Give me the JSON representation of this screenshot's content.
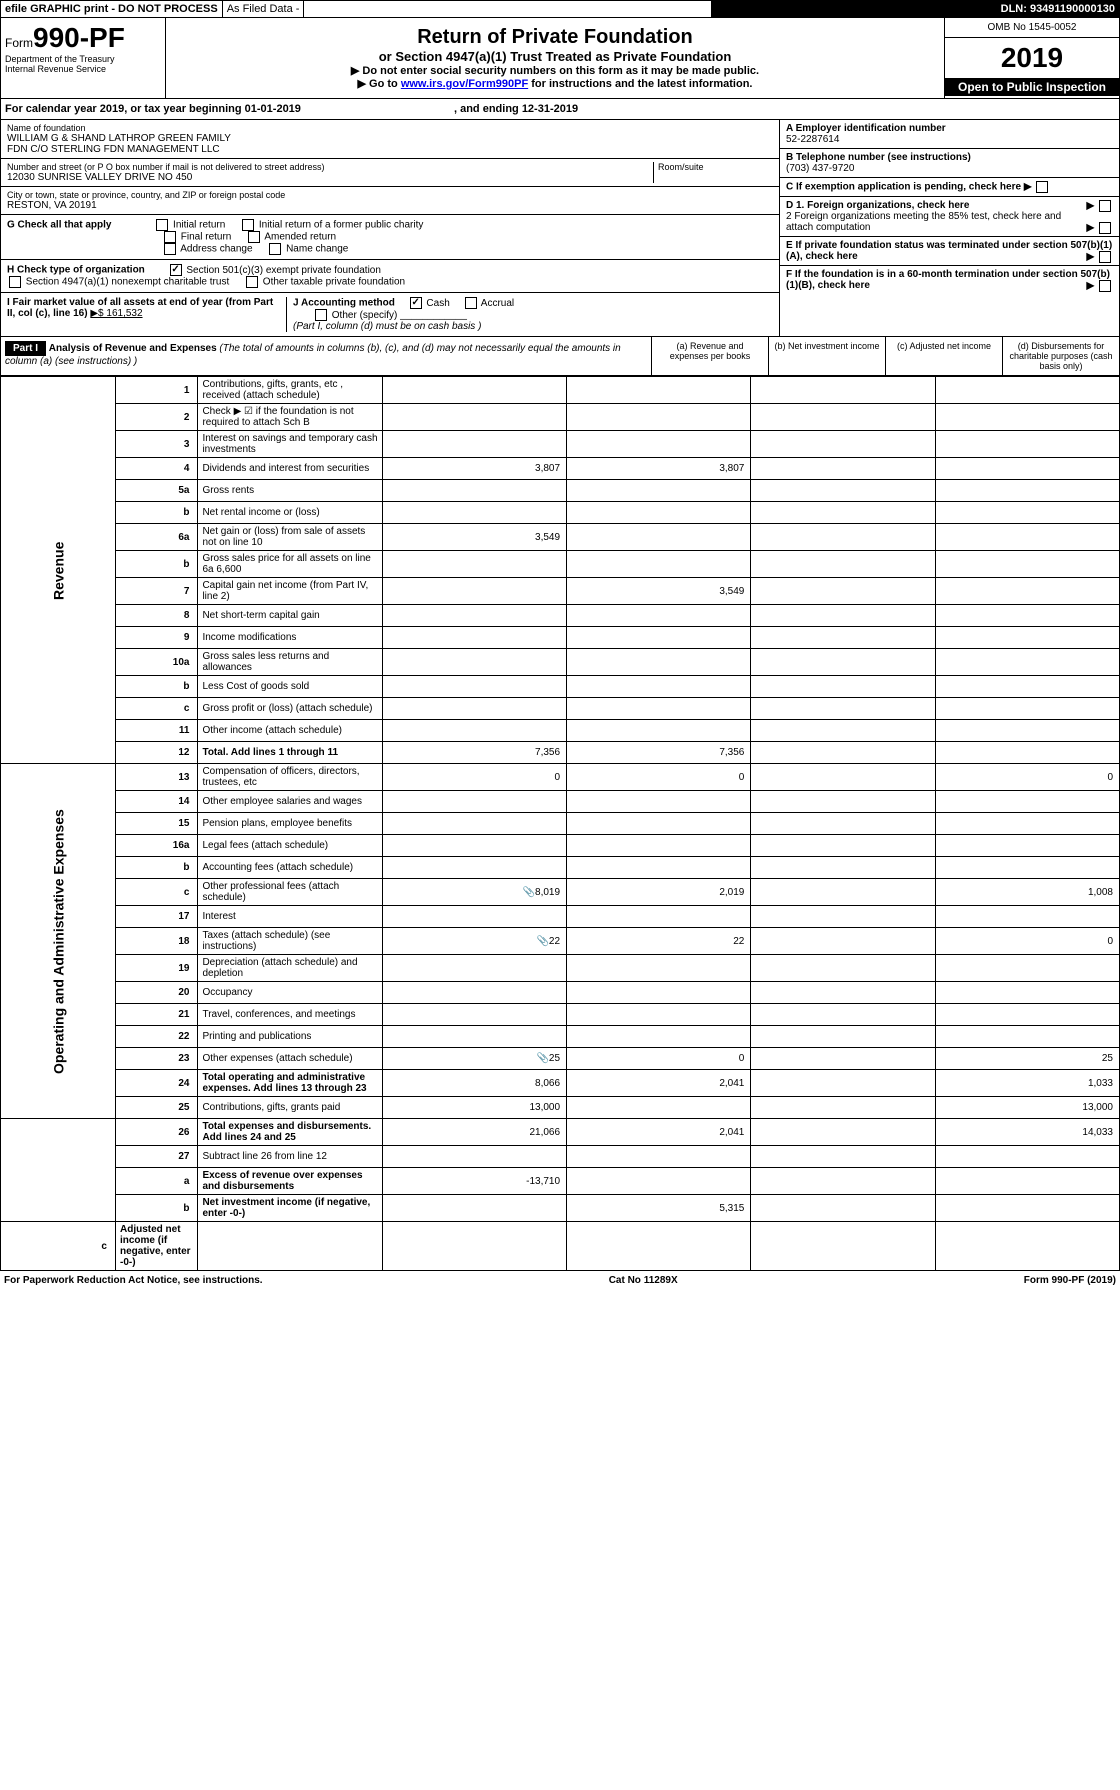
{
  "header": {
    "efile": "efile GRAPHIC print - DO NOT PROCESS",
    "asfiled": "As Filed Data -",
    "dln": "DLN: 93491190000130"
  },
  "form": {
    "prefix": "Form",
    "number": "990-PF",
    "dept1": "Department of the Treasury",
    "dept2": "Internal Revenue Service"
  },
  "title": {
    "main": "Return of Private Foundation",
    "sub": "or Section 4947(a)(1) Trust Treated as Private Foundation",
    "instr1": "▶ Do not enter social security numbers on this form as it may be made public.",
    "instr2_pre": "▶ Go to ",
    "instr2_link": "www.irs.gov/Form990PF",
    "instr2_post": " for instructions and the latest information."
  },
  "yearbox": {
    "omb": "OMB No 1545-0052",
    "year": "2019",
    "inspect": "Open to Public Inspection"
  },
  "calyear": {
    "text": "For calendar year 2019, or tax year beginning 01-01-2019",
    "ending": ", and ending 12-31-2019"
  },
  "foundation": {
    "name_label": "Name of foundation",
    "name1": "WILLIAM G & SHAND LATHROP GREEN FAMILY",
    "name2": "FDN C/O STERLING FDN MANAGEMENT LLC",
    "addr_label": "Number and street (or P O  box number if mail is not delivered to street address)",
    "room_label": "Room/suite",
    "addr": "12030 SUNRISE VALLEY DRIVE NO 450",
    "city_label": "City or town, state or province, country, and ZIP or foreign postal code",
    "city": "RESTON, VA  20191"
  },
  "right": {
    "a_label": "A Employer identification number",
    "a_val": "52-2287614",
    "b_label": "B Telephone number (see instructions)",
    "b_val": "(703) 437-9720",
    "c_label": "C If exemption application is pending, check here",
    "d1": "D 1. Foreign organizations, check here",
    "d2": "2 Foreign organizations meeting the 85% test, check here and attach computation",
    "e": "E  If private foundation status was terminated under section 507(b)(1)(A), check here",
    "f": "F  If the foundation is in a 60-month termination under section 507(b)(1)(B), check here"
  },
  "checkG": {
    "label": "G Check all that apply",
    "opts": [
      "Initial return",
      "Initial return of a former public charity",
      "Final return",
      "Amended return",
      "Address change",
      "Name change"
    ]
  },
  "checkH": {
    "label": "H Check type of organization",
    "opt1": "Section 501(c)(3) exempt private foundation",
    "opt2": "Section 4947(a)(1) nonexempt charitable trust",
    "opt3": "Other taxable private foundation"
  },
  "checkI": {
    "label": "I Fair market value of all assets at end of year (from Part II, col  (c), line 16)",
    "val": "▶$  161,532"
  },
  "checkJ": {
    "label": "J Accounting method",
    "cash": "Cash",
    "accrual": "Accrual",
    "other": "Other (specify)",
    "note": "(Part I, column (d) must be on cash basis )"
  },
  "part1": {
    "label": "Part I",
    "title": "Analysis of Revenue and Expenses",
    "note": "(The total of amounts in columns (b), (c), and (d) may not necessarily equal the amounts in column (a) (see instructions) )",
    "col_a": "(a) Revenue and expenses per books",
    "col_b": "(b) Net investment income",
    "col_c": "(c) Adjusted net income",
    "col_d": "(d) Disbursements for charitable purposes (cash basis only)"
  },
  "vert": {
    "revenue": "Revenue",
    "expenses": "Operating and Administrative Expenses"
  },
  "rows": [
    {
      "n": "1",
      "d": "Contributions, gifts, grants, etc , received (attach schedule)",
      "a": "",
      "b": "",
      "c": "",
      "dd": ""
    },
    {
      "n": "2",
      "d": "Check ▶ ☑ if the foundation is not required to attach Sch B",
      "a": "",
      "b": "",
      "c": "",
      "dd": ""
    },
    {
      "n": "3",
      "d": "Interest on savings and temporary cash investments",
      "a": "",
      "b": "",
      "c": "",
      "dd": ""
    },
    {
      "n": "4",
      "d": "Dividends and interest from securities",
      "a": "3,807",
      "b": "3,807",
      "c": "",
      "dd": ""
    },
    {
      "n": "5a",
      "d": "Gross rents",
      "a": "",
      "b": "",
      "c": "",
      "dd": ""
    },
    {
      "n": "b",
      "d": "Net rental income or (loss)",
      "a": "",
      "b": "",
      "c": "",
      "dd": ""
    },
    {
      "n": "6a",
      "d": "Net gain or (loss) from sale of assets not on line 10",
      "a": "3,549",
      "b": "",
      "c": "",
      "dd": ""
    },
    {
      "n": "b",
      "d": "Gross sales price for all assets on line 6a          6,600",
      "a": "",
      "b": "",
      "c": "",
      "dd": ""
    },
    {
      "n": "7",
      "d": "Capital gain net income (from Part IV, line 2)",
      "a": "",
      "b": "3,549",
      "c": "",
      "dd": ""
    },
    {
      "n": "8",
      "d": "Net short-term capital gain",
      "a": "",
      "b": "",
      "c": "",
      "dd": ""
    },
    {
      "n": "9",
      "d": "Income modifications",
      "a": "",
      "b": "",
      "c": "",
      "dd": ""
    },
    {
      "n": "10a",
      "d": "Gross sales less returns and allowances",
      "a": "",
      "b": "",
      "c": "",
      "dd": ""
    },
    {
      "n": "b",
      "d": "Less  Cost of goods sold",
      "a": "",
      "b": "",
      "c": "",
      "dd": ""
    },
    {
      "n": "c",
      "d": "Gross profit or (loss) (attach schedule)",
      "a": "",
      "b": "",
      "c": "",
      "dd": ""
    },
    {
      "n": "11",
      "d": "Other income (attach schedule)",
      "a": "",
      "b": "",
      "c": "",
      "dd": ""
    },
    {
      "n": "12",
      "d": "Total. Add lines 1 through 11",
      "a": "7,356",
      "b": "7,356",
      "c": "",
      "dd": "",
      "bold": true
    },
    {
      "n": "13",
      "d": "Compensation of officers, directors, trustees, etc",
      "a": "0",
      "b": "0",
      "c": "",
      "dd": "0"
    },
    {
      "n": "14",
      "d": "Other employee salaries and wages",
      "a": "",
      "b": "",
      "c": "",
      "dd": ""
    },
    {
      "n": "15",
      "d": "Pension plans, employee benefits",
      "a": "",
      "b": "",
      "c": "",
      "dd": ""
    },
    {
      "n": "16a",
      "d": "Legal fees (attach schedule)",
      "a": "",
      "b": "",
      "c": "",
      "dd": ""
    },
    {
      "n": "b",
      "d": "Accounting fees (attach schedule)",
      "a": "",
      "b": "",
      "c": "",
      "dd": ""
    },
    {
      "n": "c",
      "d": "Other professional fees (attach schedule)",
      "a": "8,019",
      "b": "2,019",
      "c": "",
      "dd": "1,008",
      "icon": true
    },
    {
      "n": "17",
      "d": "Interest",
      "a": "",
      "b": "",
      "c": "",
      "dd": ""
    },
    {
      "n": "18",
      "d": "Taxes (attach schedule) (see instructions)",
      "a": "22",
      "b": "22",
      "c": "",
      "dd": "0",
      "icon": true
    },
    {
      "n": "19",
      "d": "Depreciation (attach schedule) and depletion",
      "a": "",
      "b": "",
      "c": "",
      "dd": ""
    },
    {
      "n": "20",
      "d": "Occupancy",
      "a": "",
      "b": "",
      "c": "",
      "dd": ""
    },
    {
      "n": "21",
      "d": "Travel, conferences, and meetings",
      "a": "",
      "b": "",
      "c": "",
      "dd": ""
    },
    {
      "n": "22",
      "d": "Printing and publications",
      "a": "",
      "b": "",
      "c": "",
      "dd": ""
    },
    {
      "n": "23",
      "d": "Other expenses (attach schedule)",
      "a": "25",
      "b": "0",
      "c": "",
      "dd": "25",
      "icon": true
    },
    {
      "n": "24",
      "d": "Total operating and administrative expenses. Add lines 13 through 23",
      "a": "8,066",
      "b": "2,041",
      "c": "",
      "dd": "1,033",
      "bold": true
    },
    {
      "n": "25",
      "d": "Contributions, gifts, grants paid",
      "a": "13,000",
      "b": "",
      "c": "",
      "dd": "13,000"
    },
    {
      "n": "26",
      "d": "Total expenses and disbursements. Add lines 24 and 25",
      "a": "21,066",
      "b": "2,041",
      "c": "",
      "dd": "14,033",
      "bold": true
    },
    {
      "n": "27",
      "d": "Subtract line 26 from line 12",
      "a": "",
      "b": "",
      "c": "",
      "dd": ""
    },
    {
      "n": "a",
      "d": "Excess of revenue over expenses and disbursements",
      "a": "-13,710",
      "b": "",
      "c": "",
      "dd": "",
      "bold": true
    },
    {
      "n": "b",
      "d": "Net investment income (if negative, enter -0-)",
      "a": "",
      "b": "5,315",
      "c": "",
      "dd": "",
      "bold": true
    },
    {
      "n": "c",
      "d": "Adjusted net income (if negative, enter -0-)",
      "a": "",
      "b": "",
      "c": "",
      "dd": "",
      "bold": true
    }
  ],
  "footer": {
    "left": "For Paperwork Reduction Act Notice, see instructions.",
    "mid": "Cat  No  11289X",
    "right": "Form 990-PF (2019)"
  }
}
